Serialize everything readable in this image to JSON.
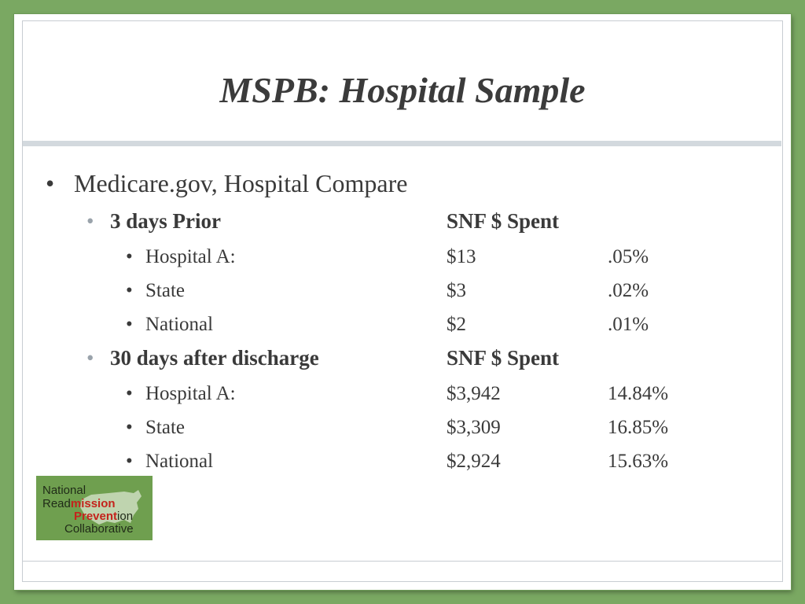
{
  "slide": {
    "title": "MSPB: Hospital Sample",
    "level1": "Medicare.gov, Hospital Compare",
    "sections": [
      {
        "label": "3 days Prior",
        "column_header": "SNF $ Spent",
        "rows": [
          {
            "name": "Hospital A:",
            "amount": "$13",
            "percent": ".05%"
          },
          {
            "name": "State",
            "amount": "$3",
            "percent": ".02%"
          },
          {
            "name": "National",
            "amount": "$2",
            "percent": ".01%"
          }
        ]
      },
      {
        "label": "30 days after discharge",
        "column_header": "SNF $ Spent",
        "rows": [
          {
            "name": "Hospital A:",
            "amount": "$3,942",
            "percent": "14.84%"
          },
          {
            "name": "State",
            "amount": "$3,309",
            "percent": "16.85%"
          },
          {
            "name": "National",
            "amount": "$2,924",
            "percent": "15.63%"
          }
        ]
      }
    ]
  },
  "logo": {
    "line1": "National",
    "line2_a": "Read",
    "line2_b": "mission",
    "line3_a": "Prevent",
    "line3_b": "ion",
    "line4": "Collaborative",
    "background": "#6f9f4f",
    "accent": "#c4231c"
  },
  "colors": {
    "frame": "#7aa862",
    "text": "#3a3a3a",
    "rule": "#d3d9de"
  }
}
